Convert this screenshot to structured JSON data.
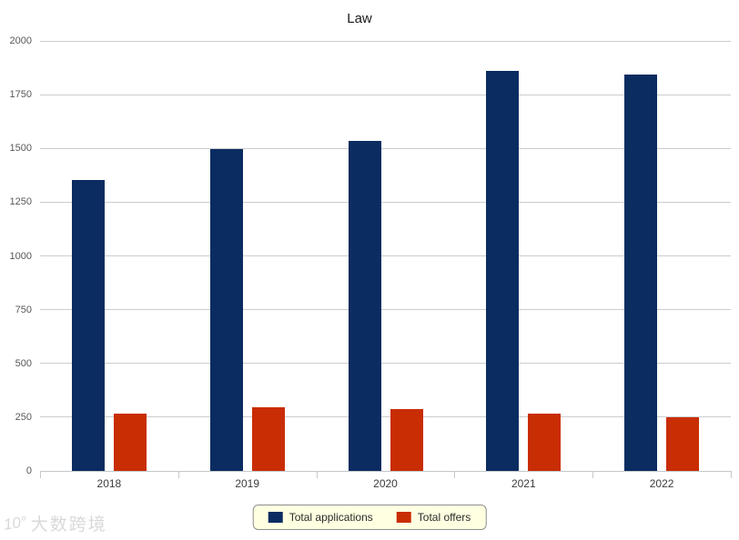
{
  "chart_data": {
    "type": "bar",
    "title": "Law",
    "categories": [
      "2018",
      "2019",
      "2020",
      "2021",
      "2022"
    ],
    "series": [
      {
        "name": "Total applications",
        "color": "#0b2c61",
        "values": [
          1355,
          1497,
          1537,
          1862,
          1845
        ]
      },
      {
        "name": "Total offers",
        "color": "#c92d03",
        "values": [
          268,
          294,
          287,
          265,
          249
        ]
      }
    ],
    "xlabel": "",
    "ylabel": "",
    "ylim": [
      0,
      2000
    ],
    "ytick_step": 250,
    "grid": "horizontal",
    "legend_position": "bottom",
    "colors": {
      "gridline": "#cccccc",
      "axis": "#c3c9cc",
      "legend_background": "#ffffe1",
      "legend_border": "#8f8f8f"
    }
  },
  "watermark": {
    "logo_glyph": "10°",
    "text": "大数跨境"
  }
}
